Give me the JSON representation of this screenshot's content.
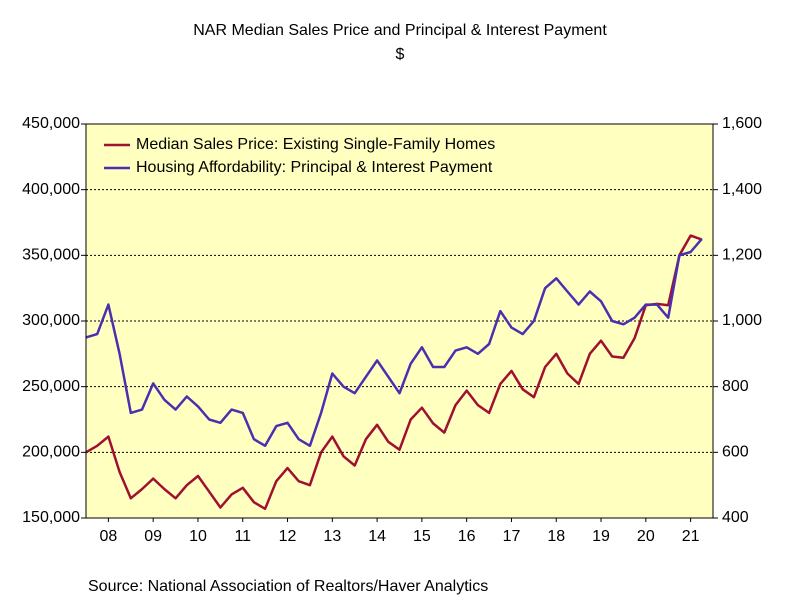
{
  "chart_data": {
    "type": "line",
    "title": "NAR Median Sales Price and Principal & Interest Payment",
    "subtitle": "$",
    "source": "Source:  National Association of Realtors/Haver Analytics",
    "x": [
      2008,
      2008.25,
      2008.5,
      2008.75,
      2009,
      2009.25,
      2009.5,
      2009.75,
      2010,
      2010.25,
      2010.5,
      2010.75,
      2011,
      2011.25,
      2011.5,
      2011.75,
      2012,
      2012.25,
      2012.5,
      2012.75,
      2013,
      2013.25,
      2013.5,
      2013.75,
      2014,
      2014.25,
      2014.5,
      2014.75,
      2015,
      2015.25,
      2015.5,
      2015.75,
      2016,
      2016.25,
      2016.5,
      2016.75,
      2017,
      2017.25,
      2017.5,
      2017.75,
      2018,
      2018.25,
      2018.5,
      2018.75,
      2019,
      2019.25,
      2019.5,
      2019.75,
      2020,
      2020.25,
      2020.5,
      2020.75,
      2021,
      2021.25,
      2021.5,
      2021.75
    ],
    "xlim": [
      2008,
      2022
    ],
    "xticks": [
      {
        "value": 2008.5,
        "label": "08"
      },
      {
        "value": 2009.5,
        "label": "09"
      },
      {
        "value": 2010.5,
        "label": "10"
      },
      {
        "value": 2011.5,
        "label": "11"
      },
      {
        "value": 2012.5,
        "label": "12"
      },
      {
        "value": 2013.5,
        "label": "13"
      },
      {
        "value": 2014.5,
        "label": "14"
      },
      {
        "value": 2015.5,
        "label": "15"
      },
      {
        "value": 2016.5,
        "label": "16"
      },
      {
        "value": 2017.5,
        "label": "17"
      },
      {
        "value": 2018.5,
        "label": "18"
      },
      {
        "value": 2019.5,
        "label": "19"
      },
      {
        "value": 2020.5,
        "label": "20"
      },
      {
        "value": 2021.5,
        "label": "21"
      }
    ],
    "ylim": [
      150000,
      450000
    ],
    "yticks": [
      {
        "value": 150000,
        "label": "150,000"
      },
      {
        "value": 200000,
        "label": "200,000"
      },
      {
        "value": 250000,
        "label": "250,000"
      },
      {
        "value": 300000,
        "label": "300,000"
      },
      {
        "value": 350000,
        "label": "350,000"
      },
      {
        "value": 400000,
        "label": "400,000"
      },
      {
        "value": 450000,
        "label": "450,000"
      }
    ],
    "y2lim": [
      400,
      1600
    ],
    "y2ticks": [
      400,
      600,
      800,
      {
        "value": 1000,
        "label": "1,000"
      },
      {
        "value": 1200,
        "label": "1,200"
      },
      {
        "value": 1400,
        "label": "1,400"
      },
      {
        "value": 1600,
        "label": "1,600"
      }
    ],
    "grid": true,
    "legend": "upper left",
    "series": [
      {
        "name": "Median Sales Price: Existing Single-Family Homes",
        "color": "#a01030",
        "values": [
          200000,
          205000,
          212000,
          185000,
          165000,
          172000,
          180000,
          172000,
          165000,
          175000,
          182000,
          170000,
          158000,
          168000,
          173000,
          162000,
          157000,
          178000,
          188000,
          178000,
          175000,
          200000,
          212000,
          197000,
          190000,
          210000,
          221000,
          208000,
          202000,
          225000,
          234000,
          222000,
          215000,
          236000,
          247000,
          236000,
          230000,
          252000,
          262000,
          248000,
          242000,
          265000,
          275000,
          260000,
          252000,
          275000,
          285000,
          273000,
          272000,
          287000,
          312000,
          313000,
          312000,
          350000,
          365000,
          362000
        ]
      },
      {
        "name": "Housing Affordability: Principal & Interest Payment",
        "color": "#4a30b0",
        "axis": "y2",
        "values": [
          950,
          960,
          1050,
          900,
          720,
          730,
          810,
          760,
          730,
          770,
          740,
          700,
          690,
          730,
          720,
          640,
          620,
          680,
          690,
          640,
          620,
          720,
          840,
          800,
          780,
          830,
          880,
          830,
          780,
          870,
          920,
          860,
          860,
          910,
          920,
          900,
          930,
          1030,
          980,
          960,
          1000,
          1100,
          1130,
          1090,
          1050,
          1090,
          1060,
          1000,
          990,
          1010,
          1050,
          1050,
          1010,
          1200,
          1210,
          1250
        ]
      }
    ]
  }
}
